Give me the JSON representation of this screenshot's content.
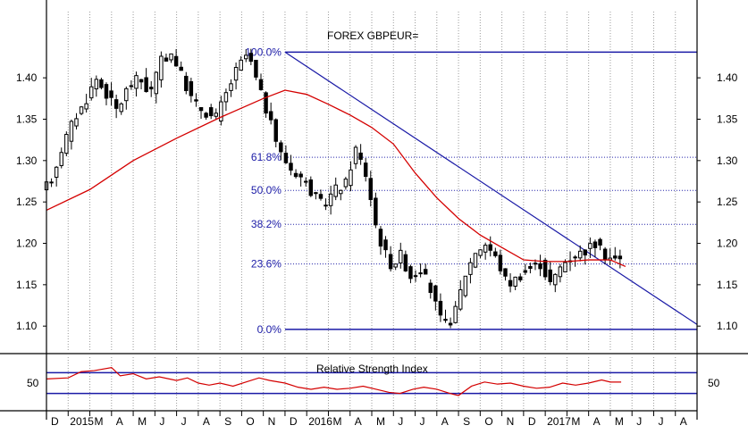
{
  "chart_data": {
    "type": "candlestick",
    "title": "FOREX GBPEUR=",
    "price_axis": {
      "ticks": [
        1.1,
        1.15,
        1.2,
        1.25,
        1.3,
        1.35,
        1.4
      ],
      "tick_labels": [
        "1.10",
        "1.15",
        "1.20",
        "1.25",
        "1.30",
        "1.35",
        "1.40"
      ],
      "range": [
        1.07,
        1.48
      ]
    },
    "time_axis": {
      "labels": [
        "D",
        "2015",
        "M",
        "A",
        "M",
        "J",
        "J",
        "A",
        "S",
        "O",
        "N",
        "D",
        "2016",
        "M",
        "A",
        "M",
        "J",
        "J",
        "A",
        "S",
        "O",
        "N",
        "D",
        "2017",
        "M",
        "A",
        "M",
        "J",
        "J",
        "A"
      ],
      "range_months": [
        0,
        30
      ]
    },
    "fibonacci": {
      "high": 1.431,
      "low": 1.096,
      "levels": [
        {
          "label": "100.0%",
          "value": 1.431,
          "style": "solid"
        },
        {
          "label": "61.8%",
          "value": 1.304,
          "style": "dotted"
        },
        {
          "label": "50.0%",
          "value": 1.264,
          "style": "dotted"
        },
        {
          "label": "38.2%",
          "value": 1.223,
          "style": "dotted"
        },
        {
          "label": "23.6%",
          "value": 1.175,
          "style": "dotted"
        },
        {
          "label": "0.0%",
          "value": 1.096,
          "style": "solid"
        }
      ]
    },
    "trendline": {
      "from": [
        11.0,
        1.431
      ],
      "to": [
        30.0,
        1.102
      ]
    },
    "moving_average": {
      "months": [
        0,
        2,
        4,
        6,
        8,
        10,
        11,
        12,
        13,
        14,
        15,
        16,
        17,
        18,
        19,
        20,
        21,
        22,
        23,
        24,
        25,
        26,
        26.7
      ],
      "values": [
        1.24,
        1.265,
        1.3,
        1.327,
        1.352,
        1.375,
        1.385,
        1.38,
        1.368,
        1.355,
        1.34,
        1.32,
        1.285,
        1.255,
        1.23,
        1.21,
        1.195,
        1.18,
        1.178,
        1.178,
        1.18,
        1.18,
        1.172
      ]
    },
    "price_path": {
      "months": [
        0,
        0.5,
        1,
        1.5,
        2,
        2.5,
        3,
        3.5,
        4,
        4.5,
        5,
        5.5,
        6,
        6.5,
        7,
        7.5,
        8,
        8.5,
        9,
        9.5,
        10,
        10.5,
        11,
        11.5,
        12,
        12.5,
        13,
        13.5,
        14,
        14.5,
        15,
        15.5,
        16,
        16.2,
        16.5,
        17,
        17.5,
        18,
        18.5,
        19,
        19.5,
        20,
        20.5,
        21,
        21.5,
        22,
        22.5,
        23,
        23.5,
        24,
        24.5,
        25,
        25.5,
        26,
        26.5
      ],
      "values": [
        1.26,
        1.28,
        1.32,
        1.35,
        1.37,
        1.4,
        1.38,
        1.36,
        1.39,
        1.4,
        1.38,
        1.42,
        1.43,
        1.4,
        1.37,
        1.36,
        1.35,
        1.38,
        1.41,
        1.43,
        1.39,
        1.35,
        1.31,
        1.29,
        1.28,
        1.26,
        1.245,
        1.265,
        1.27,
        1.315,
        1.28,
        1.21,
        1.18,
        1.17,
        1.19,
        1.16,
        1.17,
        1.14,
        1.1,
        1.11,
        1.16,
        1.19,
        1.2,
        1.18,
        1.15,
        1.16,
        1.17,
        1.175,
        1.15,
        1.175,
        1.185,
        1.19,
        1.2,
        1.185,
        1.18
      ]
    },
    "rsi": {
      "label": "Relative Strength Index",
      "tick": 50,
      "tick_label": "50",
      "range": [
        0,
        100
      ],
      "upper_level": 70,
      "lower_level": 30,
      "months": [
        0,
        1,
        1.6,
        2.2,
        3.0,
        3.4,
        4,
        4.6,
        5.2,
        6,
        6.5,
        7,
        7.5,
        8,
        8.6,
        9.2,
        9.8,
        10.3,
        11,
        11.6,
        12.2,
        12.8,
        13.4,
        14,
        14.6,
        15.2,
        15.8,
        16.3,
        16.9,
        17.4,
        18,
        18.6,
        19,
        19.6,
        20.2,
        20.8,
        21.4,
        22,
        22.6,
        23.2,
        23.8,
        24.4,
        25,
        25.6,
        26,
        26.5
      ],
      "values": [
        58,
        60,
        72,
        74,
        80,
        64,
        68,
        58,
        62,
        55,
        60,
        50,
        46,
        50,
        44,
        52,
        60,
        55,
        50,
        42,
        38,
        42,
        38,
        40,
        44,
        38,
        32,
        30,
        38,
        42,
        38,
        30,
        26,
        44,
        52,
        48,
        50,
        44,
        40,
        42,
        50,
        46,
        50,
        56,
        52,
        52
      ]
    }
  }
}
